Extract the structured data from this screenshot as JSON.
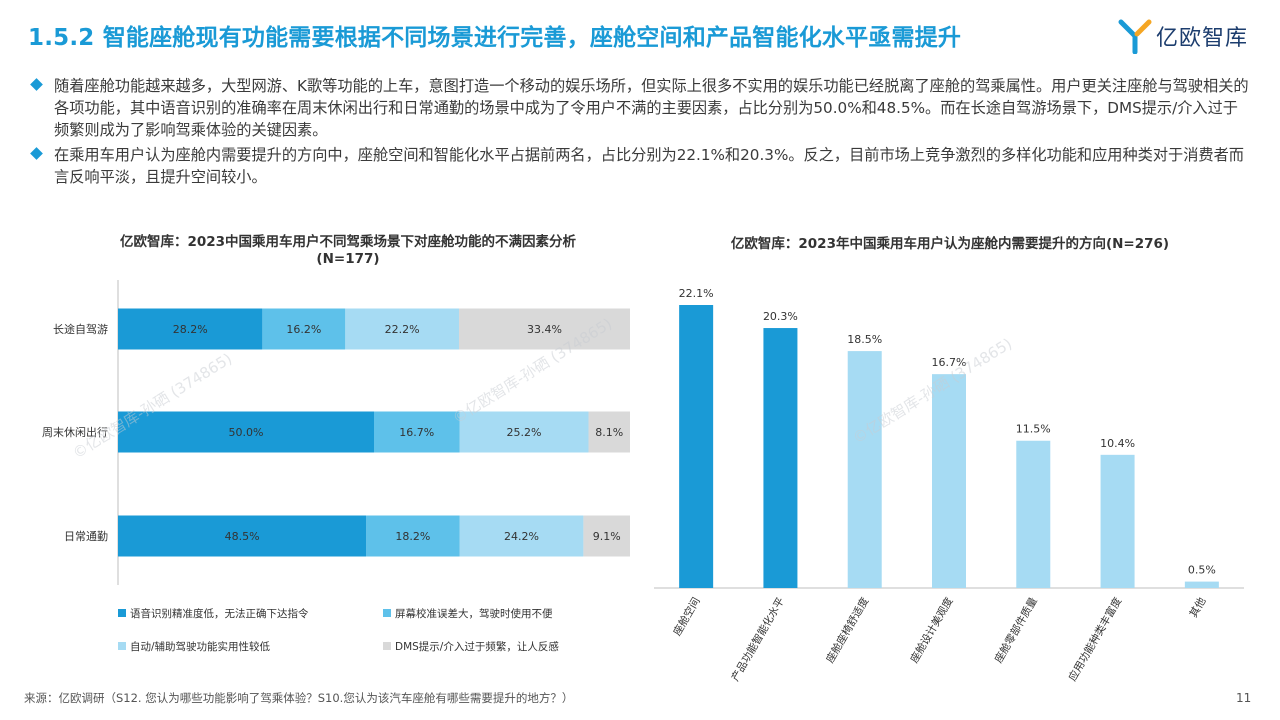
{
  "header": {
    "title": "1.5.2 智能座舱现有功能需要根据不同场景进行完善，座舱空间和产品智能化水平亟需提升",
    "logo_text": "亿欧智库"
  },
  "bullets": [
    "随着座舱功能越来越多，大型网游、K歌等功能的上车，意图打造一个移动的娱乐场所，但实际上很多不实用的娱乐功能已经脱离了座舱的驾乘属性。用户更关注座舱与驾驶相关的各项功能，其中语音识别的准确率在周末休闲出行和日常通勤的场景中成为了令用户不满的主要因素，占比分别为50.0%和48.5%。而在长途自驾游场景下，DMS提示/介入过于频繁则成为了影响驾乘体验的关键因素。",
    "在乘用车用户认为座舱内需要提升的方向中，座舱空间和智能化水平占据前两名，占比分别为22.1%和20.3%。反之，目前市场上竞争激烈的多样化功能和应用种类对于消费者而言反响平淡，且提升空间较小。"
  ],
  "watermark": "©亿欧智库-孙硒 (374865)",
  "chart_data": [
    {
      "type": "bar",
      "orientation": "horizontal",
      "stacked": "percent",
      "title": "亿欧智库：2023中国乘用车用户不同驾乘场景下对座舱功能的不满因素分析",
      "subtitle": "(N=177)",
      "categories": [
        "长途自驾游",
        "周末休闲出行",
        "日常通勤"
      ],
      "series": [
        {
          "name": "语音识别精准度低，无法正确下达指令",
          "values": [
            28.2,
            50.0,
            48.5
          ],
          "color": "#1a9ad6"
        },
        {
          "name": "屏幕校准误差大，驾驶时使用不便",
          "values": [
            16.2,
            16.7,
            18.2
          ],
          "color": "#5ec1ea"
        },
        {
          "name": "自动/辅助驾驶功能实用性较低",
          "values": [
            22.2,
            25.2,
            24.2
          ],
          "color": "#a6dbf3"
        },
        {
          "name": "DMS提示/介入过于频繁，让人反感",
          "values": [
            33.4,
            8.1,
            9.1
          ],
          "color": "#d9d9d9"
        }
      ],
      "value_labels": [
        [
          "28.2%",
          "16.2%",
          "22.2%",
          "33.4%"
        ],
        [
          "50.0%",
          "16.7%",
          "25.2%",
          "8.1%"
        ],
        [
          "48.5%",
          "18.2%",
          "24.2%",
          "9.1%"
        ]
      ],
      "xlim": [
        0,
        100
      ],
      "legend": "bottom"
    },
    {
      "type": "bar",
      "title": "亿欧智库：2023年中国乘用车用户认为座舱内需要提升的方向(N=276)",
      "categories": [
        "座舱空间",
        "产品功能智能化水平",
        "座舱座椅舒适度",
        "座舱设计美观度",
        "座舱零部件质量",
        "应用功能种类丰富度",
        "其他"
      ],
      "values": [
        22.1,
        20.3,
        18.5,
        16.7,
        11.5,
        10.4,
        0.5
      ],
      "value_labels": [
        "22.1%",
        "20.3%",
        "18.5%",
        "16.7%",
        "11.5%",
        "10.4%",
        "0.5%"
      ],
      "colors": [
        "#1a9ad6",
        "#1a9ad6",
        "#a6dbf3",
        "#a6dbf3",
        "#a6dbf3",
        "#a6dbf3",
        "#a6dbf3"
      ],
      "ylim": [
        0,
        25
      ]
    }
  ],
  "footer": {
    "source": "来源：亿欧调研（S12. 您认为哪些功能影响了驾乘体验？S10.您认为该汽车座舱有哪些需要提升的地方？）",
    "page": "11"
  }
}
